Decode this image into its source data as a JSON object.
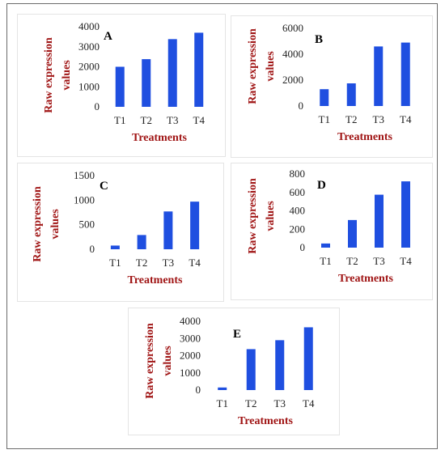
{
  "chart_data": [
    {
      "type": "bar",
      "panel_label": "A",
      "categories": [
        "T1",
        "T2",
        "T3",
        "T4"
      ],
      "values": [
        2000,
        2380,
        3380,
        3700
      ],
      "yticks": [
        0,
        1000,
        2000,
        3000,
        4000
      ],
      "ylim": [
        0,
        4000
      ],
      "xlabel": "Treatments",
      "ylabel_lines": [
        "Raw expression",
        "values"
      ],
      "color": "#1f4fe0",
      "grid": false
    },
    {
      "type": "bar",
      "panel_label": "B",
      "categories": [
        "T1",
        "T2",
        "T3",
        "T4"
      ],
      "values": [
        1300,
        1750,
        4600,
        4900
      ],
      "yticks": [
        0,
        2000,
        4000,
        6000
      ],
      "ylim": [
        0,
        6000
      ],
      "xlabel": "Treatments",
      "ylabel_lines": [
        "Raw expression",
        "values"
      ],
      "color": "#1f4fe0",
      "grid": false
    },
    {
      "type": "bar",
      "panel_label": "C",
      "categories": [
        "T1",
        "T2",
        "T3",
        "T4"
      ],
      "values": [
        75,
        290,
        770,
        970
      ],
      "yticks": [
        0,
        500,
        1000,
        1500
      ],
      "ylim": [
        0,
        1500
      ],
      "xlabel": "Treatments",
      "ylabel_lines": [
        "Raw expression",
        "values"
      ],
      "color": "#1f4fe0",
      "grid": false
    },
    {
      "type": "bar",
      "panel_label": "D",
      "categories": [
        "T1",
        "T2",
        "T3",
        "T4"
      ],
      "values": [
        45,
        300,
        575,
        720
      ],
      "yticks": [
        0,
        200,
        400,
        600,
        800
      ],
      "ylim": [
        0,
        800
      ],
      "xlabel": "Treatments",
      "ylabel_lines": [
        "Raw expression",
        "values"
      ],
      "color": "#1f4fe0",
      "grid": false
    },
    {
      "type": "bar",
      "panel_label": "E",
      "categories": [
        "T1",
        "T2",
        "T3",
        "T4"
      ],
      "values": [
        150,
        2380,
        2900,
        3650
      ],
      "yticks": [
        0,
        1000,
        2000,
        3000,
        4000
      ],
      "ylim": [
        0,
        4000
      ],
      "xlabel": "Treatments",
      "ylabel_lines": [
        "Raw expression",
        "values"
      ],
      "color": "#1f4fe0",
      "grid": false
    }
  ]
}
